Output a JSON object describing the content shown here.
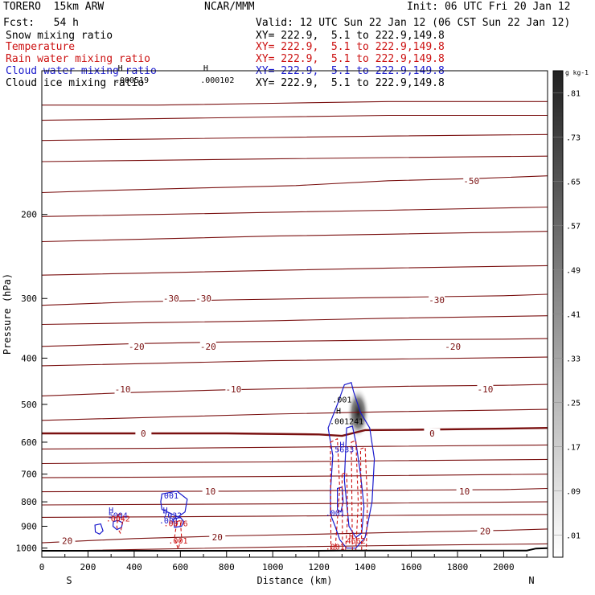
{
  "header": {
    "model": "TORERO  15km ARW",
    "org": "NCAR/MMM",
    "init": "Init: 06 UTC Fri 20 Jan 12",
    "fcst": "Fcst:   54 h",
    "valid": "Valid: 12 UTC Sun 22 Jan 12 (06 CST Sun 22 Jan 12)"
  },
  "legend": [
    {
      "name": "Snow mixing ratio",
      "xy": "XY= 222.9,  5.1 to 222.9,149.8",
      "color": "#000000"
    },
    {
      "name": "Temperature",
      "xy": "XY= 222.9,  5.1 to 222.9,149.8",
      "color": "#cc1111"
    },
    {
      "name": "Rain water mixing ratio",
      "xy": "XY= 222.9,  5.1 to 222.9,149.8",
      "color": "#cc1111"
    },
    {
      "name": "Cloud water mixing ratio",
      "xy": "XY= 222.9,  5.1 to 222.9,149.8",
      "color": "#1a1acc"
    },
    {
      "name": "Cloud ice mixing ratio",
      "xy": "XY= 222.9,  5.1 to 222.9,149.8",
      "color": "#000000"
    }
  ],
  "chart_data": {
    "type": "cross-section contour",
    "xlabel": "Distance (km)",
    "ylabel": "Pressure (hPa)",
    "x_ticks": [
      0,
      200,
      400,
      600,
      800,
      1000,
      1200,
      1400,
      1600,
      1800,
      2000
    ],
    "y_ticks": [
      200,
      300,
      400,
      500,
      600,
      700,
      800,
      900,
      1000
    ],
    "xlim": [
      0,
      2190
    ],
    "ylim": [
      1045,
      100
    ],
    "y_scale": "log",
    "left_end_label": "S",
    "right_end_label": "N",
    "colorbar": {
      "unit": "g kg-1",
      "ticks": [
        ".01",
        ".09",
        ".17",
        ".25",
        ".33",
        ".41",
        ".49",
        ".57",
        ".65",
        ".73",
        ".81"
      ]
    },
    "isotherms": [
      {
        "label": "-50",
        "x": [
          0,
          300,
          700,
          1100,
          1500,
          1900,
          2190
        ],
        "p": [
          180,
          178,
          176,
          174,
          170,
          168,
          166
        ],
        "label_at": [
          [
            1860,
            170
          ]
        ]
      },
      {
        "label": "",
        "x": [
          0,
          500,
          1000,
          1500,
          2190
        ],
        "p": [
          118,
          118,
          117,
          116,
          116
        ],
        "label_at": []
      },
      {
        "label": "",
        "x": [
          0,
          500,
          1000,
          1500,
          2190
        ],
        "p": [
          127,
          126,
          125,
          124,
          124
        ],
        "label_at": []
      },
      {
        "label": "",
        "x": [
          0,
          500,
          1000,
          1500,
          2190
        ],
        "p": [
          140,
          139,
          138,
          137,
          136
        ],
        "label_at": []
      },
      {
        "label": "",
        "x": [
          0,
          500,
          1000,
          1500,
          2190
        ],
        "p": [
          155,
          154,
          153,
          152,
          151
        ],
        "label_at": []
      },
      {
        "label": "",
        "x": [
          0,
          500,
          1000,
          1500,
          2190
        ],
        "p": [
          202,
          200,
          198,
          196,
          193
        ],
        "label_at": []
      },
      {
        "label": "",
        "x": [
          0,
          500,
          1000,
          1500,
          2190
        ],
        "p": [
          228,
          225,
          222,
          220,
          217
        ],
        "label_at": []
      },
      {
        "label": "-30",
        "x": [
          0,
          400,
          800,
          1200,
          1600,
          2000,
          2190
        ],
        "p": [
          310,
          305,
          302,
          300,
          298,
          296,
          294
        ],
        "label_at": [
          [
            560,
            300
          ],
          [
            700,
            300
          ],
          [
            1710,
            302
          ]
        ]
      },
      {
        "label": "",
        "x": [
          0,
          500,
          1000,
          1500,
          2190
        ],
        "p": [
          268,
          265,
          262,
          259,
          256
        ],
        "label_at": []
      },
      {
        "label": "",
        "x": [
          0,
          500,
          1000,
          1500,
          2190
        ],
        "p": [
          340,
          337,
          334,
          330,
          326
        ],
        "label_at": []
      },
      {
        "label": "-20",
        "x": [
          0,
          400,
          800,
          1200,
          1600,
          2000,
          2190
        ],
        "p": [
          378,
          373,
          370,
          368,
          366,
          365,
          364
        ],
        "label_at": [
          [
            410,
            378
          ],
          [
            720,
            378
          ],
          [
            1780,
            378
          ]
        ]
      },
      {
        "label": "",
        "x": [
          0,
          500,
          1000,
          1500,
          2190
        ],
        "p": [
          415,
          410,
          405,
          402,
          398
        ],
        "label_at": []
      },
      {
        "label": "-10",
        "x": [
          0,
          400,
          800,
          1200,
          1600,
          2000,
          2190
        ],
        "p": [
          480,
          472,
          466,
          462,
          458,
          456,
          454
        ],
        "label_at": [
          [
            350,
            465
          ],
          [
            830,
            465
          ],
          [
            1920,
            465
          ]
        ]
      },
      {
        "label": "",
        "x": [
          0,
          500,
          1000,
          1500,
          2190
        ],
        "p": [
          540,
          532,
          524,
          518,
          512
        ],
        "label_at": []
      },
      {
        "label": "0",
        "x": [
          0,
          400,
          800,
          1200,
          1300,
          1400,
          1600,
          2000,
          2190
        ],
        "p": [
          575,
          575,
          575,
          578,
          582,
          566,
          565,
          562,
          560
        ],
        "label_at": [
          [
            440,
            575
          ],
          [
            1690,
            575
          ]
        ]
      },
      {
        "label": "",
        "x": [
          0,
          500,
          1000,
          1500,
          2190
        ],
        "p": [
          620,
          618,
          615,
          612,
          608
        ],
        "label_at": []
      },
      {
        "label": "",
        "x": [
          0,
          500,
          1000,
          1500,
          2190
        ],
        "p": [
          665,
          662,
          660,
          656,
          652
        ],
        "label_at": []
      },
      {
        "label": "",
        "x": [
          0,
          500,
          1000,
          1500,
          2190
        ],
        "p": [
          712,
          710,
          708,
          705,
          700
        ],
        "label_at": []
      },
      {
        "label": "10",
        "x": [
          0,
          400,
          800,
          1200,
          1600,
          2000,
          2190
        ],
        "p": [
          762,
          761,
          760,
          758,
          756,
          754,
          750
        ],
        "label_at": [
          [
            730,
            760
          ],
          [
            1830,
            760
          ]
        ]
      },
      {
        "label": "",
        "x": [
          0,
          500,
          1000,
          1500,
          2190
        ],
        "p": [
          812,
          810,
          808,
          805,
          800
        ],
        "label_at": []
      },
      {
        "label": "",
        "x": [
          0,
          500,
          1000,
          1500,
          2190
        ],
        "p": [
          862,
          860,
          857,
          854,
          850
        ],
        "label_at": []
      },
      {
        "label": "20",
        "x": [
          0,
          400,
          800,
          1200,
          1600,
          2000,
          2190
        ],
        "p": [
          975,
          955,
          943,
          935,
          926,
          918,
          912
        ],
        "label_at": [
          [
            110,
            965
          ],
          [
            760,
            948
          ],
          [
            1920,
            922
          ]
        ]
      },
      {
        "label": "",
        "x": [
          0,
          500,
          1000,
          1500,
          2190
        ],
        "p": [
          1015,
          1005,
          995,
          988,
          980
        ],
        "label_at": []
      }
    ],
    "cloud_water": [
      {
        "x": [
          310,
          330,
          350,
          345,
          325,
          308,
          310
        ],
        "p": [
          880,
          875,
          885,
          905,
          915,
          900,
          880
        ]
      },
      {
        "x": [
          230,
          255,
          265,
          250,
          232,
          230
        ],
        "p": [
          895,
          890,
          920,
          935,
          925,
          895
        ]
      },
      {
        "x": [
          520,
          585,
          630,
          620,
          590,
          520,
          515,
          520
        ],
        "p": [
          770,
          760,
          790,
          840,
          860,
          830,
          800,
          770
        ]
      },
      {
        "x": [
          570,
          600,
          615,
          605,
          575,
          570
        ],
        "p": [
          870,
          862,
          880,
          900,
          905,
          870
        ]
      },
      {
        "x": [
          1310,
          1340,
          1350,
          1380,
          1420,
          1440,
          1430,
          1400,
          1360,
          1320,
          1290,
          1270,
          1250,
          1250,
          1260,
          1240,
          1280,
          1310
        ],
        "p": [
          455,
          450,
          470,
          520,
          560,
          650,
          800,
          950,
          1000,
          1000,
          960,
          900,
          850,
          760,
          640,
          560,
          500,
          455
        ]
      },
      {
        "x": [
          1320,
          1345,
          1360,
          1380,
          1395,
          1385,
          1360,
          1330,
          1310,
          1320
        ],
        "p": [
          560,
          555,
          600,
          700,
          820,
          930,
          950,
          900,
          720,
          560
        ]
      },
      {
        "x": [
          1280,
          1300,
          1305,
          1295,
          1280,
          1280
        ],
        "p": [
          750,
          745,
          800,
          840,
          830,
          750
        ]
      }
    ],
    "rain_water": [
      {
        "x": [
          330,
          345,
          350,
          340,
          325,
          330
        ],
        "p": [
          850,
          848,
          880,
          930,
          905,
          850
        ]
      },
      {
        "x": [
          585,
          600,
          605,
          590,
          575,
          585
        ],
        "p": [
          880,
          875,
          950,
          1005,
          950,
          880
        ]
      },
      {
        "x": [
          1250,
          1280,
          1290,
          1270,
          1252,
          1250
        ],
        "p": [
          600,
          590,
          750,
          1010,
          1010,
          600
        ]
      },
      {
        "x": [
          1340,
          1360,
          1370,
          1360,
          1345,
          1340
        ],
        "p": [
          600,
          595,
          800,
          1010,
          1010,
          600
        ]
      },
      {
        "x": [
          1380,
          1400,
          1410,
          1405,
          1385,
          1380
        ],
        "p": [
          620,
          615,
          800,
          1010,
          1010,
          620
        ]
      },
      {
        "x": [
          1300,
          1320,
          1325,
          1315,
          1302,
          1300
        ],
        "p": [
          700,
          695,
          850,
          1010,
          1010,
          700
        ]
      }
    ],
    "snow_core": {
      "x": 1370,
      "p_top": 460,
      "p_bottom": 590
    },
    "terrain": {
      "x": [
        0,
        1200,
        1300,
        1400,
        2100,
        2140,
        2190
      ],
      "p": [
        1013,
        1013,
        1012,
        1012,
        1012,
        1002,
        1000
      ]
    },
    "labels": [
      {
        "text": "H",
        "x": 340,
        "p": 100,
        "color": "#000000"
      },
      {
        "text": ".000519",
        "x": 390,
        "p": 106,
        "color": "#000000"
      },
      {
        "text": "H",
        "x": 710,
        "p": 100,
        "color": "#000000"
      },
      {
        "text": ".000102",
        "x": 760,
        "p": 106,
        "color": "#000000"
      },
      {
        "text": ".001",
        "x": 1300,
        "p": 495,
        "color": "#000000"
      },
      {
        "text": "H",
        "x": 1285,
        "p": 523,
        "color": "#000000"
      },
      {
        "text": ".001241",
        "x": 1320,
        "p": 550,
        "color": "#000000"
      },
      {
        "text": "H",
        "x": 1300,
        "p": 615,
        "color": "#1a1acc"
      },
      {
        "text": "5633",
        "x": 1310,
        "p": 630,
        "color": "#1a1acc"
      },
      {
        "text": ".001",
        "x": 550,
        "p": 788,
        "color": "#1a1acc"
      },
      {
        "text": "H",
        "x": 535,
        "p": 845,
        "color": "#1a1acc"
      },
      {
        "text": "7032",
        "x": 565,
        "p": 865,
        "color": "#1a1acc"
      },
      {
        "text": ".001",
        "x": 550,
        "p": 888,
        "color": "#1a1acc"
      },
      {
        "text": ".0076",
        "x": 580,
        "p": 900,
        "color": "#cc1111"
      },
      {
        "text": "H",
        "x": 300,
        "p": 845,
        "color": "#1a1acc"
      },
      {
        "text": "5004",
        "x": 330,
        "p": 865,
        "color": "#1a1acc"
      },
      {
        "text": ".0042",
        "x": 330,
        "p": 880,
        "color": "#cc1111"
      },
      {
        "text": ".001",
        "x": 1270,
        "p": 855,
        "color": "#1a1acc"
      },
      {
        "text": ".001",
        "x": 590,
        "p": 978,
        "color": "#cc1111"
      },
      {
        "text": "H",
        "x": 1340,
        "p": 958,
        "color": "#cc1111"
      },
      {
        "text": "4662",
        "x": 1360,
        "p": 978,
        "color": "#cc1111"
      },
      {
        "text": ".001",
        "x": 1270,
        "p": 1008,
        "color": "#cc1111"
      }
    ]
  }
}
